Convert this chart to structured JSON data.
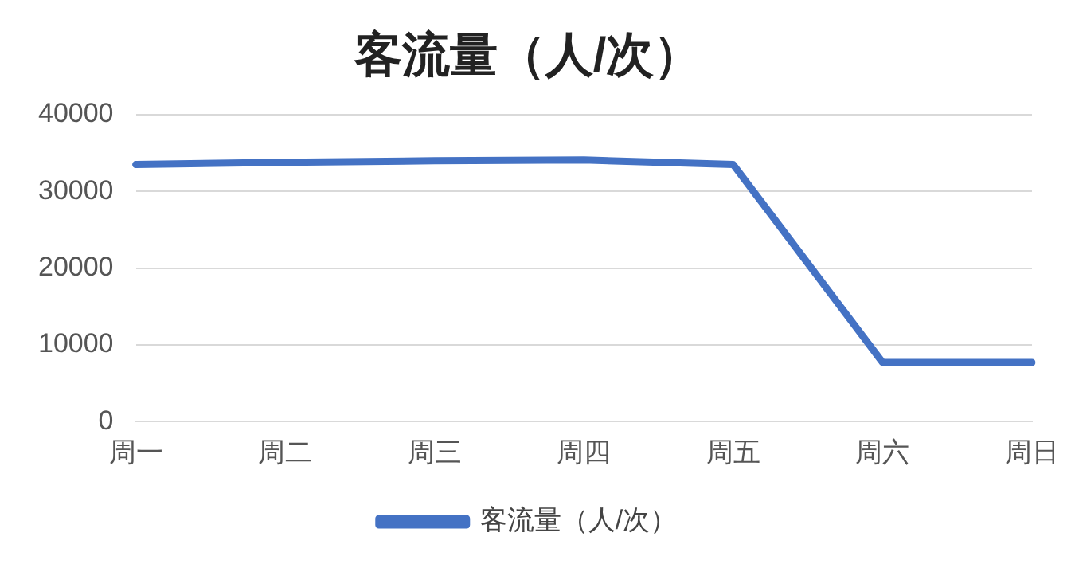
{
  "chart_data": {
    "type": "line",
    "title": "客流量（人/次）",
    "categories": [
      "周一",
      "周二",
      "周三",
      "周四",
      "周五",
      "周六",
      "周日"
    ],
    "series": [
      {
        "name": "客流量（人/次）",
        "color": "#4472c4",
        "values": [
          33500,
          33800,
          34000,
          34100,
          33500,
          7700,
          7700
        ]
      }
    ],
    "ylim": [
      0,
      40000
    ],
    "yticks": [
      0,
      10000,
      20000,
      30000,
      40000
    ],
    "grid": "y",
    "legend": "bottom",
    "marker": "none",
    "line_style": "solid"
  }
}
